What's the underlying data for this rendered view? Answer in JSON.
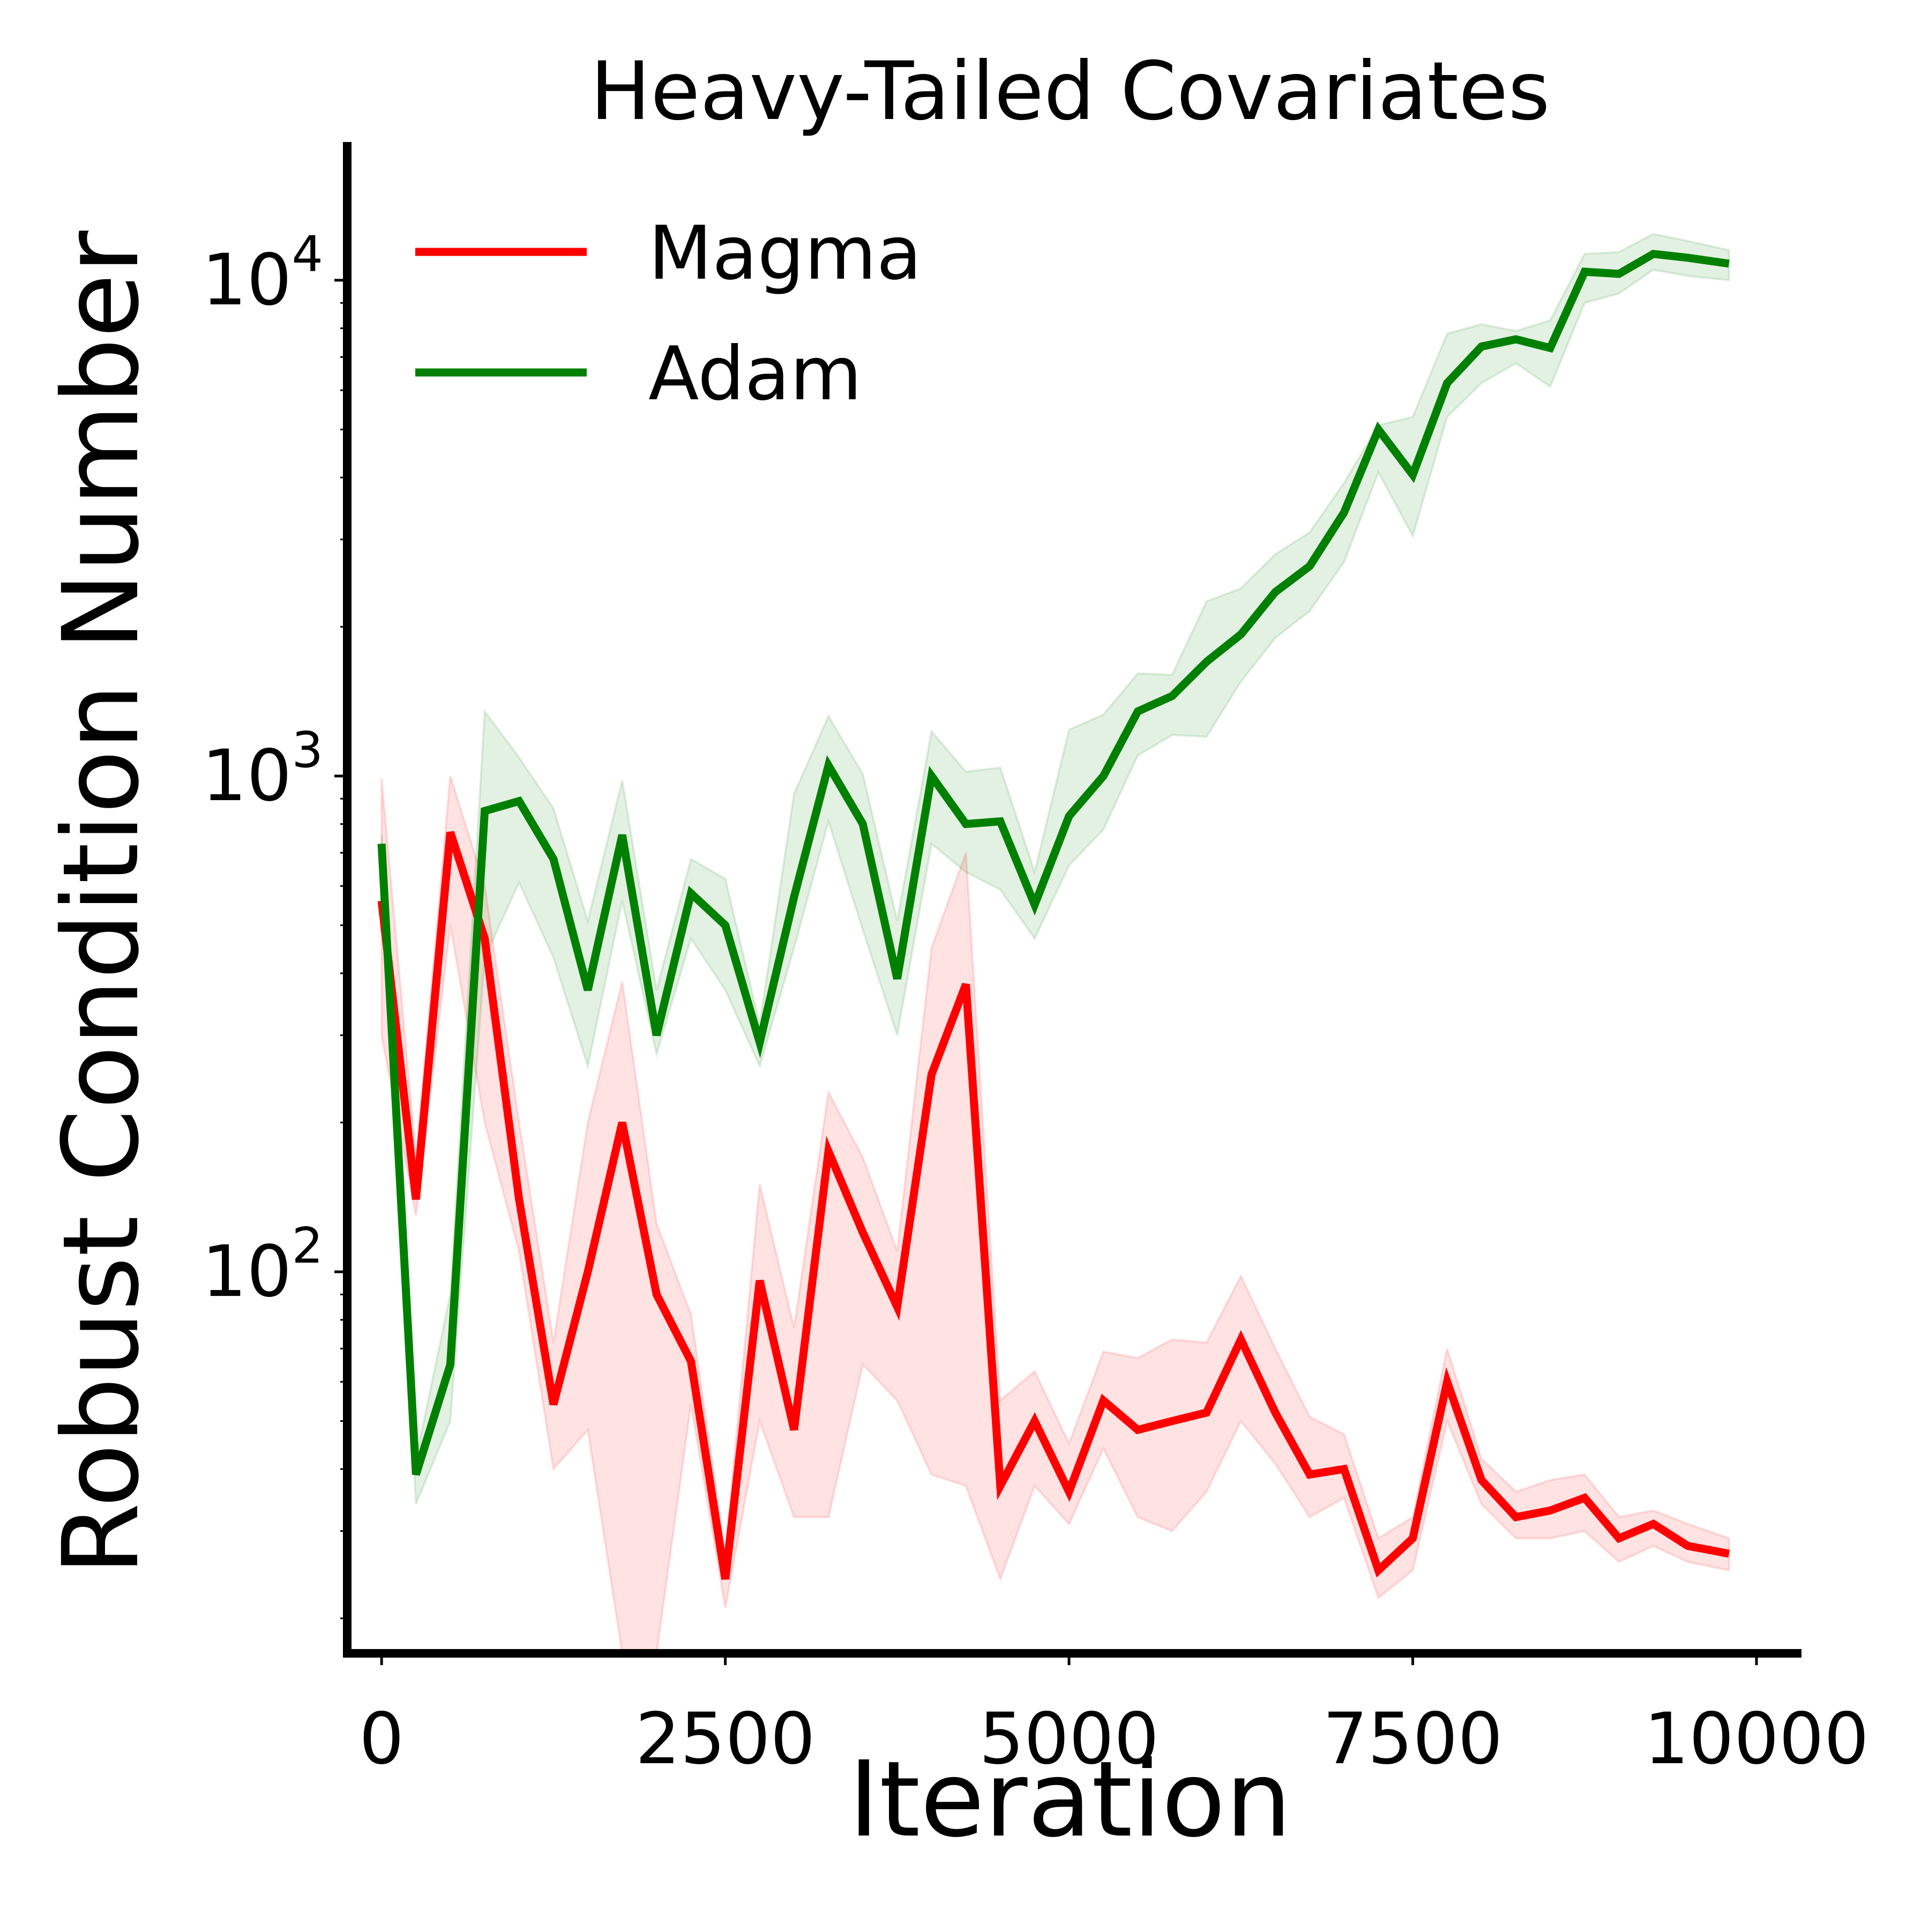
{
  "chart_data": {
    "type": "line",
    "title": "Heavy-Tailed Covariates",
    "xlabel": "Iteration",
    "ylabel": "Robust Condition Number",
    "xlim": [
      -250,
      10300
    ],
    "ylim": [
      17,
      19000
    ],
    "yscale": "log",
    "grid": false,
    "legend_position": "top-left",
    "x_ticks": [
      {
        "value": 0,
        "label": "0"
      },
      {
        "value": 2500,
        "label": "2500"
      },
      {
        "value": 5000,
        "label": "5000"
      },
      {
        "value": 7500,
        "label": "7500"
      },
      {
        "value": 10000,
        "label": "10000"
      }
    ],
    "y_ticks": [
      {
        "value": 100,
        "base": "10",
        "exp": "2"
      },
      {
        "value": 1000,
        "base": "10",
        "exp": "3"
      },
      {
        "value": 10000,
        "base": "10",
        "exp": "4"
      }
    ],
    "x": [
      0,
      250,
      500,
      750,
      1000,
      1250,
      1500,
      1750,
      2000,
      2250,
      2500,
      2750,
      3000,
      3250,
      3500,
      3750,
      4000,
      4250,
      4500,
      4750,
      5000,
      5250,
      5500,
      5750,
      6000,
      6250,
      6500,
      6750,
      7000,
      7250,
      7500,
      7750,
      8000,
      8250,
      8500,
      8750,
      9000,
      9250,
      9500,
      9800
    ],
    "series": [
      {
        "name": "Magma",
        "color": "#ff0000",
        "values": [
          560,
          140,
          770,
          470,
          140,
          54,
          100,
          200,
          90,
          66,
          24,
          96,
          48,
          175,
          120,
          85,
          250,
          380,
          37,
          50,
          36,
          55,
          48,
          50,
          52,
          73,
          52,
          39,
          40,
          25,
          29,
          60,
          38,
          32,
          33,
          35,
          29,
          31,
          28,
          27
        ],
        "lower": [
          300,
          130,
          500,
          200,
          110,
          40,
          48,
          17,
          17,
          54,
          21,
          50,
          32,
          32,
          65,
          55,
          39,
          37,
          24,
          37,
          31,
          44,
          32,
          30,
          36,
          50,
          41,
          32,
          35,
          22,
          25,
          50,
          34,
          29,
          29,
          30,
          26,
          28,
          26,
          25
        ],
        "upper": [
          990,
          170,
          1000,
          600,
          200,
          72,
          200,
          385,
          125,
          82,
          27,
          150,
          77,
          230,
          170,
          110,
          450,
          700,
          55,
          63,
          45,
          69,
          67,
          73,
          72,
          98,
          70,
          51,
          47,
          29,
          32,
          70,
          42,
          36,
          38,
          39,
          32,
          33,
          31,
          29
        ]
      },
      {
        "name": "Adam",
        "color": "#008000",
        "values": [
          730,
          39,
          65,
          850,
          890,
          680,
          370,
          760,
          300,
          580,
          500,
          290,
          570,
          1050,
          800,
          390,
          1000,
          800,
          810,
          550,
          830,
          1000,
          1350,
          1450,
          1700,
          1930,
          2350,
          2650,
          3400,
          5000,
          4050,
          6200,
          7350,
          7600,
          7300,
          10400,
          10300,
          11300,
          11100,
          10800
        ],
        "lower": [
          700,
          34,
          50,
          430,
          610,
          430,
          260,
          560,
          275,
          470,
          370,
          260,
          450,
          810,
          490,
          300,
          730,
          640,
          590,
          470,
          660,
          780,
          1100,
          1210,
          1200,
          1550,
          1900,
          2150,
          2700,
          4100,
          3050,
          5300,
          6200,
          6800,
          6100,
          9000,
          9400,
          10500,
          10200,
          10000
        ],
        "upper": [
          760,
          42,
          90,
          1350,
          1090,
          860,
          510,
          980,
          370,
          680,
          620,
          315,
          920,
          1320,
          1010,
          510,
          1230,
          1020,
          1040,
          640,
          1240,
          1330,
          1610,
          1600,
          2250,
          2390,
          2800,
          3100,
          3900,
          5100,
          5300,
          7800,
          8150,
          7900,
          8300,
          11300,
          11400,
          12400,
          12000,
          11500
        ]
      }
    ]
  }
}
